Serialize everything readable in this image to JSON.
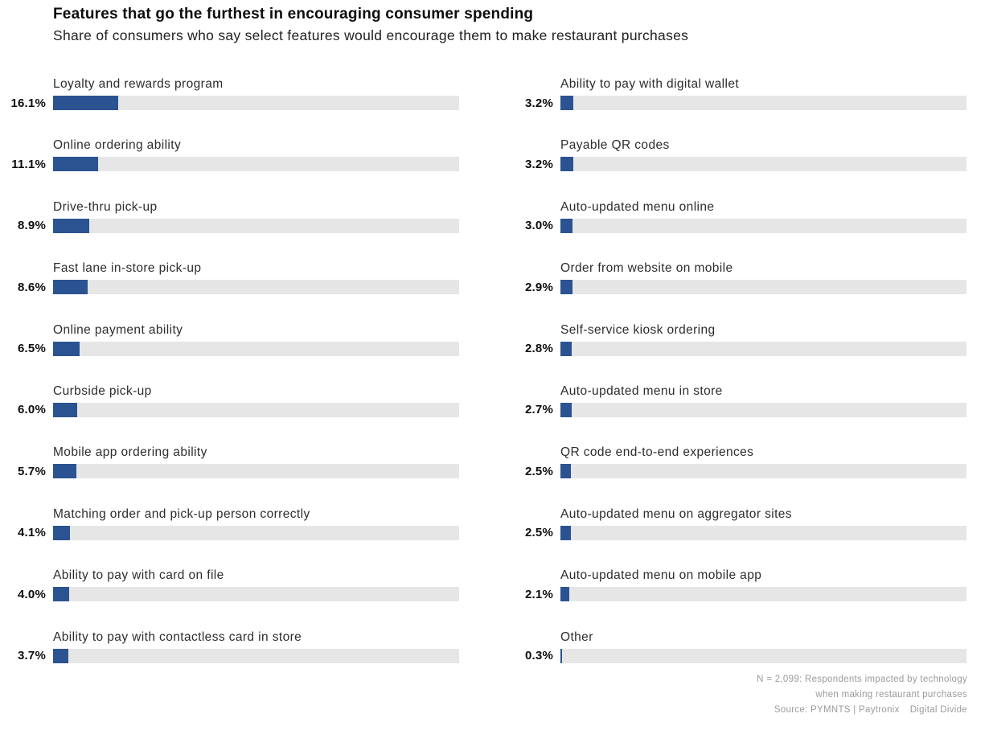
{
  "chart_data": {
    "type": "bar",
    "orientation": "horizontal",
    "title": "Features that go the furthest in encouraging consumer spending",
    "subtitle": "Share of consumers who say select features would encourage them to make restaurant purchases",
    "unit": "%",
    "xlim": [
      0,
      100
    ],
    "grid": false,
    "legend": "none",
    "bar_color": "#2b5391",
    "track_color": "#e6e6e6",
    "categories": [
      "Loyalty and rewards program",
      "Online ordering ability",
      "Drive-thru pick-up",
      "Fast lane in-store pick-up",
      "Online payment ability",
      "Curbside pick-up",
      "Mobile app ordering ability",
      "Matching order and pick-up person correctly",
      "Ability to pay with card on file",
      "Ability to pay with contactless card in store",
      "Ability to pay with digital wallet",
      "Payable QR codes",
      "Auto-updated menu online",
      "Order from website on mobile",
      "Self-service kiosk ordering",
      "Auto-updated menu in store",
      "QR code end-to-end experiences",
      "Auto-updated menu on aggregator sites",
      "Auto-updated menu on mobile app",
      "Other"
    ],
    "values": [
      16.1,
      11.1,
      8.9,
      8.6,
      6.5,
      6.0,
      5.7,
      4.1,
      4.0,
      3.7,
      3.2,
      3.2,
      3.0,
      2.9,
      2.8,
      2.7,
      2.5,
      2.5,
      2.1,
      0.3
    ],
    "columns": [
      {
        "items": [
          {
            "label": "Loyalty and rewards program",
            "value": 16.1,
            "value_label": "16.1%"
          },
          {
            "label": "Online ordering ability",
            "value": 11.1,
            "value_label": "11.1%"
          },
          {
            "label": "Drive-thru pick-up",
            "value": 8.9,
            "value_label": "8.9%"
          },
          {
            "label": "Fast lane in-store pick-up",
            "value": 8.6,
            "value_label": "8.6%"
          },
          {
            "label": "Online payment ability",
            "value": 6.5,
            "value_label": "6.5%"
          },
          {
            "label": "Curbside pick-up",
            "value": 6.0,
            "value_label": "6.0%"
          },
          {
            "label": "Mobile app ordering ability",
            "value": 5.7,
            "value_label": "5.7%"
          },
          {
            "label": "Matching order and pick-up person correctly",
            "value": 4.1,
            "value_label": "4.1%"
          },
          {
            "label": "Ability to pay with card on file",
            "value": 4.0,
            "value_label": "4.0%"
          },
          {
            "label": "Ability to pay with contactless card in store",
            "value": 3.7,
            "value_label": "3.7%"
          }
        ]
      },
      {
        "items": [
          {
            "label": "Ability to pay with digital wallet",
            "value": 3.2,
            "value_label": "3.2%"
          },
          {
            "label": "Payable QR codes",
            "value": 3.2,
            "value_label": "3.2%"
          },
          {
            "label": "Auto-updated menu online",
            "value": 3.0,
            "value_label": "3.0%"
          },
          {
            "label": "Order from website on mobile",
            "value": 2.9,
            "value_label": "2.9%"
          },
          {
            "label": "Self-service kiosk ordering",
            "value": 2.8,
            "value_label": "2.8%"
          },
          {
            "label": "Auto-updated menu in store",
            "value": 2.7,
            "value_label": "2.7%"
          },
          {
            "label": "QR code end-to-end experiences",
            "value": 2.5,
            "value_label": "2.5%"
          },
          {
            "label": "Auto-updated menu on aggregator sites",
            "value": 2.5,
            "value_label": "2.5%"
          },
          {
            "label": "Auto-updated menu on mobile app",
            "value": 2.1,
            "value_label": "2.1%"
          },
          {
            "label": "Other",
            "value": 0.3,
            "value_label": "0.3%"
          }
        ]
      }
    ]
  },
  "footnote": {
    "line1": "N = 2,099: Respondents impacted by technology",
    "line2": "when making restaurant purchases",
    "source_prefix": "Source: PYMNTS | Paytronix",
    "source_name": "Digital Divide"
  }
}
